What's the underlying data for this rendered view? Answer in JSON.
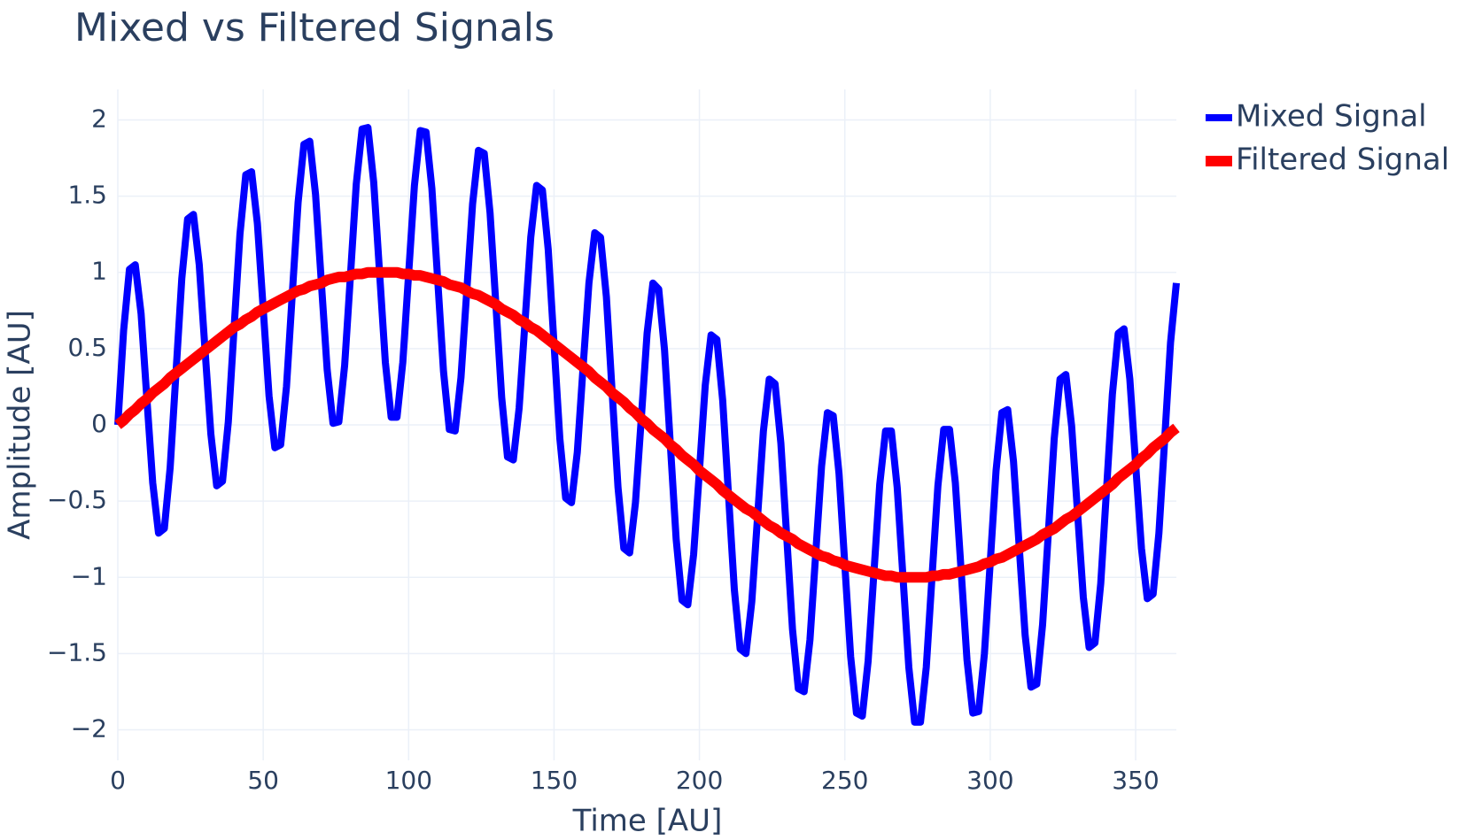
{
  "chart_data": {
    "type": "line",
    "title": "Mixed vs Filtered Signals",
    "x_label": "Time [AU]",
    "y_label": "Amplitude [AU]",
    "x": [
      0,
      2,
      4,
      6,
      8,
      10,
      12,
      14,
      16,
      18,
      20,
      22,
      24,
      26,
      28,
      30,
      32,
      34,
      36,
      38,
      40,
      42,
      44,
      46,
      48,
      50,
      52,
      54,
      56,
      58,
      60,
      62,
      64,
      66,
      68,
      70,
      72,
      74,
      76,
      78,
      80,
      82,
      84,
      86,
      88,
      90,
      92,
      94,
      96,
      98,
      100,
      102,
      104,
      106,
      108,
      110,
      112,
      114,
      116,
      118,
      120,
      122,
      124,
      126,
      128,
      130,
      132,
      134,
      136,
      138,
      140,
      142,
      144,
      146,
      148,
      150,
      152,
      154,
      156,
      158,
      160,
      162,
      164,
      166,
      168,
      170,
      172,
      174,
      176,
      178,
      180,
      182,
      184,
      186,
      188,
      190,
      192,
      194,
      196,
      198,
      200,
      202,
      204,
      206,
      208,
      210,
      212,
      214,
      216,
      218,
      220,
      222,
      224,
      226,
      228,
      230,
      232,
      234,
      236,
      238,
      240,
      242,
      244,
      246,
      248,
      250,
      252,
      254,
      256,
      258,
      260,
      262,
      264,
      266,
      268,
      270,
      272,
      274,
      276,
      278,
      280,
      282,
      284,
      286,
      288,
      290,
      292,
      294,
      296,
      298,
      300,
      302,
      304,
      306,
      308,
      310,
      312,
      314,
      316,
      318,
      320,
      322,
      324,
      326,
      328,
      330,
      332,
      334,
      336,
      338,
      340,
      342,
      344,
      346,
      348,
      350,
      352,
      354,
      356,
      358,
      360,
      362,
      364
    ],
    "series": [
      {
        "name": "Mixed Signal",
        "color": "#0000ff",
        "width": 8,
        "values": [
          0,
          0.62,
          1.02,
          1.05,
          0.73,
          0.17,
          -0.38,
          -0.71,
          -0.68,
          -0.28,
          0.34,
          0.96,
          1.35,
          1.38,
          1.05,
          0.49,
          -0.06,
          -0.4,
          -0.37,
          0.02,
          0.64,
          1.25,
          1.64,
          1.66,
          1.32,
          0.76,
          0.19,
          -0.15,
          -0.13,
          0.25,
          0.86,
          1.46,
          1.84,
          1.86,
          1.51,
          0.93,
          0.36,
          0.01,
          0.02,
          0.39,
          0.98,
          1.58,
          1.94,
          1.95,
          1.59,
          1.0,
          0.41,
          0.05,
          0.05,
          0.41,
          0.99,
          1.57,
          1.93,
          1.92,
          1.55,
          0.95,
          0.35,
          -0.03,
          -0.04,
          0.31,
          0.88,
          1.45,
          1.8,
          1.78,
          1.39,
          0.79,
          0.18,
          -0.21,
          -0.23,
          0.11,
          0.67,
          1.23,
          1.57,
          1.54,
          1.15,
          0.53,
          -0.09,
          -0.48,
          -0.51,
          -0.18,
          0.38,
          0.93,
          1.26,
          1.23,
          0.84,
          0.21,
          -0.41,
          -0.81,
          -0.84,
          -0.51,
          0.04,
          0.6,
          0.93,
          0.89,
          0.49,
          -0.13,
          -0.75,
          -1.15,
          -1.18,
          -0.85,
          -0.3,
          0.26,
          0.59,
          0.56,
          0.16,
          -0.46,
          -1.08,
          -1.47,
          -1.5,
          -1.16,
          -0.6,
          -0.04,
          0.3,
          0.27,
          -0.12,
          -0.73,
          -1.34,
          -1.73,
          -1.75,
          -1.41,
          -0.84,
          -0.27,
          0.08,
          0.06,
          -0.32,
          -0.92,
          -1.52,
          -1.89,
          -1.91,
          -1.55,
          -0.97,
          -0.39,
          -0.04,
          -0.04,
          -0.41,
          -1.0,
          -1.59,
          -1.95,
          -1.95,
          -1.59,
          -0.99,
          -0.4,
          -0.03,
          -0.03,
          -0.38,
          -0.96,
          -1.54,
          -1.89,
          -1.88,
          -1.5,
          -0.9,
          -0.3,
          0.08,
          0.1,
          -0.24,
          -0.81,
          -1.38,
          -1.72,
          -1.7,
          -1.31,
          -0.7,
          -0.09,
          0.3,
          0.33,
          -0.01,
          -0.57,
          -1.13,
          -1.46,
          -1.43,
          -1.04,
          -0.42,
          0.2,
          0.6,
          0.63,
          0.3,
          -0.26,
          -0.81,
          -1.14,
          -1.11,
          -0.71,
          -0.09,
          0.54,
          0.93
        ]
      },
      {
        "name": "Filtered Signal",
        "color": "#ff0000",
        "width": 12,
        "values": [
          0,
          0.03,
          0.07,
          0.1,
          0.14,
          0.17,
          0.21,
          0.24,
          0.27,
          0.31,
          0.34,
          0.37,
          0.4,
          0.43,
          0.46,
          0.49,
          0.52,
          0.55,
          0.58,
          0.61,
          0.64,
          0.66,
          0.69,
          0.71,
          0.74,
          0.76,
          0.78,
          0.8,
          0.82,
          0.84,
          0.86,
          0.88,
          0.89,
          0.91,
          0.92,
          0.93,
          0.95,
          0.96,
          0.97,
          0.97,
          0.98,
          0.99,
          0.99,
          1.0,
          1.0,
          1.0,
          1.0,
          1.0,
          1.0,
          0.99,
          0.99,
          0.98,
          0.98,
          0.97,
          0.96,
          0.95,
          0.94,
          0.92,
          0.91,
          0.9,
          0.88,
          0.86,
          0.85,
          0.83,
          0.81,
          0.79,
          0.76,
          0.74,
          0.72,
          0.69,
          0.67,
          0.64,
          0.62,
          0.59,
          0.56,
          0.53,
          0.5,
          0.47,
          0.44,
          0.41,
          0.38,
          0.35,
          0.31,
          0.28,
          0.25,
          0.21,
          0.18,
          0.15,
          0.11,
          0.08,
          0.04,
          0.01,
          -0.03,
          -0.06,
          -0.09,
          -0.13,
          -0.16,
          -0.2,
          -0.23,
          -0.26,
          -0.3,
          -0.33,
          -0.36,
          -0.39,
          -0.43,
          -0.46,
          -0.49,
          -0.52,
          -0.55,
          -0.57,
          -0.6,
          -0.63,
          -0.66,
          -0.68,
          -0.71,
          -0.73,
          -0.75,
          -0.78,
          -0.8,
          -0.82,
          -0.84,
          -0.86,
          -0.87,
          -0.89,
          -0.9,
          -0.92,
          -0.93,
          -0.94,
          -0.95,
          -0.96,
          -0.97,
          -0.98,
          -0.99,
          -0.99,
          -1.0,
          -1.0,
          -1.0,
          -1.0,
          -1.0,
          -1.0,
          -0.99,
          -0.99,
          -0.98,
          -0.98,
          -0.97,
          -0.96,
          -0.95,
          -0.94,
          -0.93,
          -0.91,
          -0.9,
          -0.88,
          -0.87,
          -0.85,
          -0.83,
          -0.81,
          -0.79,
          -0.77,
          -0.75,
          -0.72,
          -0.7,
          -0.68,
          -0.65,
          -0.62,
          -0.6,
          -0.57,
          -0.54,
          -0.51,
          -0.48,
          -0.45,
          -0.42,
          -0.39,
          -0.35,
          -0.32,
          -0.29,
          -0.26,
          -0.22,
          -0.19,
          -0.15,
          -0.12,
          -0.09,
          -0.05,
          -0.02
        ]
      }
    ],
    "xlim": [
      0,
      364
    ],
    "xticks": [
      0,
      50,
      100,
      150,
      200,
      250,
      300,
      350
    ],
    "ylim": [
      -2.2,
      2.2
    ],
    "yticks": [
      {
        "value": -2,
        "label": "−2"
      },
      {
        "value": -1.5,
        "label": "−1.5"
      },
      {
        "value": -1,
        "label": "−1"
      },
      {
        "value": -0.5,
        "label": "−0.5"
      },
      0,
      0.5,
      1,
      1.5,
      2
    ],
    "grid": true,
    "legend": "outside-right"
  }
}
